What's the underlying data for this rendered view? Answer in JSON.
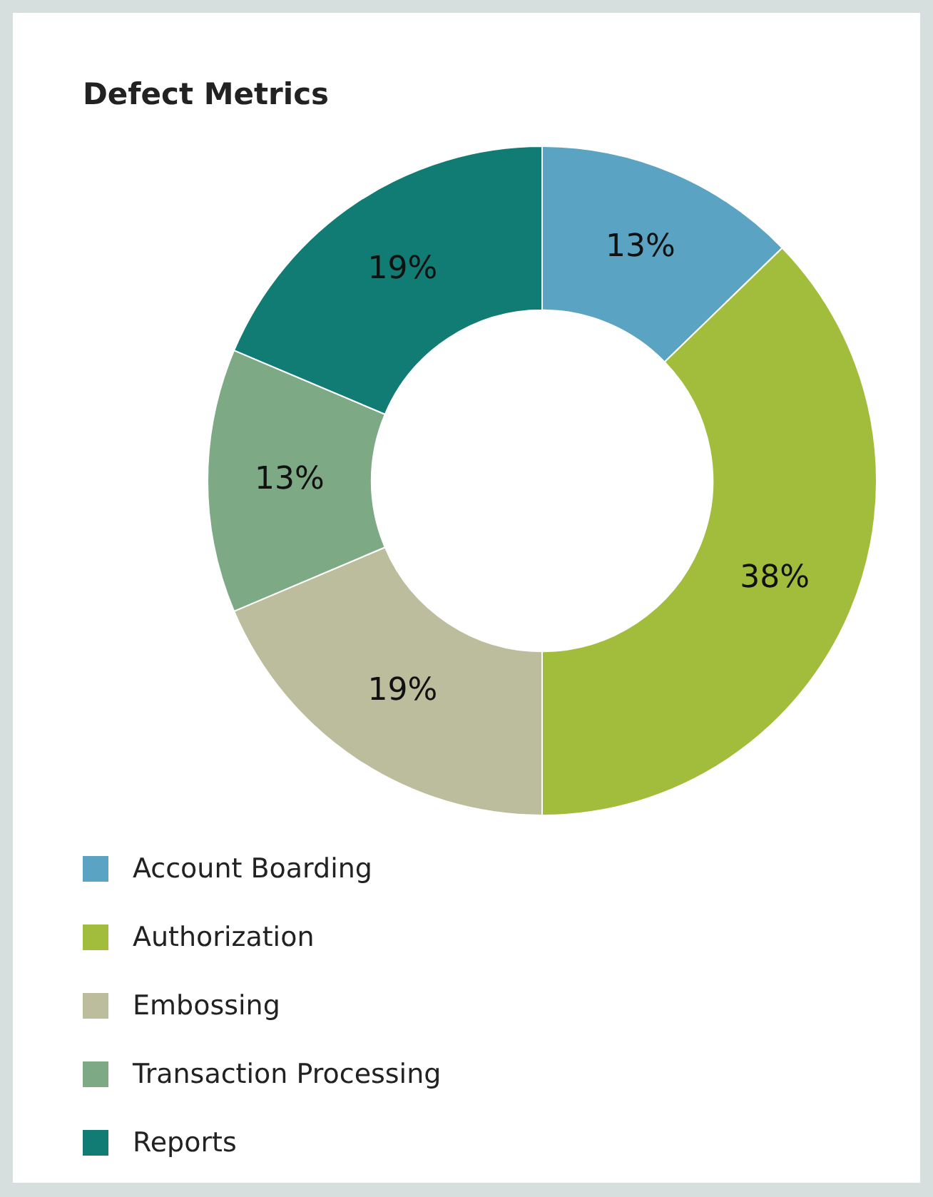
{
  "chart_data": {
    "type": "donut",
    "title": "Defect Metrics",
    "categories": [
      "Account Boarding",
      "Authorization",
      "Embossing",
      "Transaction Processing",
      "Reports"
    ],
    "values": [
      13,
      38,
      19,
      13,
      19
    ],
    "value_labels": [
      "13%",
      "38%",
      "19%",
      "13%",
      "19%"
    ],
    "colors": [
      "#5ba3c2",
      "#a2bc3c",
      "#bbbd9c",
      "#7daa84",
      "#117c73"
    ],
    "legend": "bottom"
  }
}
